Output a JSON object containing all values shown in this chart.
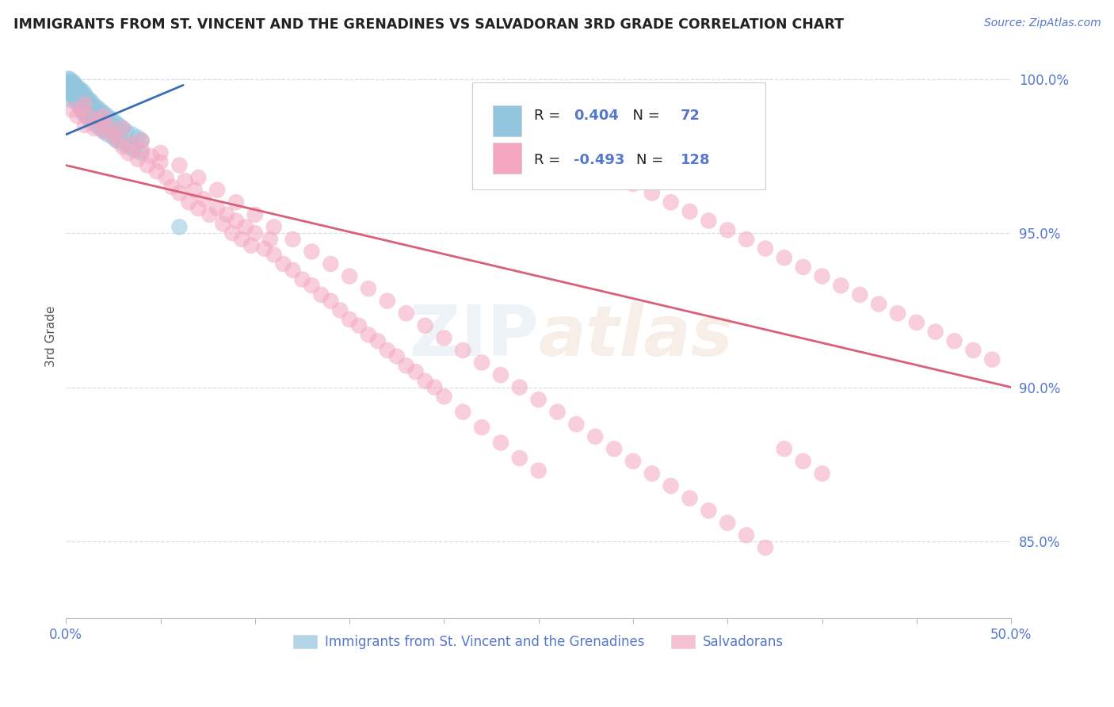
{
  "title": "IMMIGRANTS FROM ST. VINCENT AND THE GRENADINES VS SALVADORAN 3RD GRADE CORRELATION CHART",
  "source_text": "Source: ZipAtlas.com",
  "ylabel": "3rd Grade",
  "xlim": [
    0.0,
    0.5
  ],
  "ylim": [
    0.825,
    1.008
  ],
  "yticks": [
    0.85,
    0.9,
    0.95,
    1.0
  ],
  "ytick_labels": [
    "85.0%",
    "90.0%",
    "95.0%",
    "100.0%"
  ],
  "legend_blue_r": "0.404",
  "legend_blue_n": "72",
  "legend_pink_r": "-0.493",
  "legend_pink_n": "128",
  "blue_color": "#92c5de",
  "pink_color": "#f4a6c0",
  "blue_line_color": "#3a6eb5",
  "pink_line_color": "#d9607a",
  "axis_color": "#5577cc",
  "background_color": "#ffffff",
  "blue_scatter_x": [
    0.001,
    0.001,
    0.001,
    0.002,
    0.002,
    0.002,
    0.003,
    0.003,
    0.003,
    0.004,
    0.004,
    0.005,
    0.005,
    0.006,
    0.006,
    0.007,
    0.007,
    0.008,
    0.008,
    0.009,
    0.01,
    0.01,
    0.011,
    0.012,
    0.013,
    0.014,
    0.015,
    0.016,
    0.018,
    0.019,
    0.02,
    0.022,
    0.024,
    0.026,
    0.028,
    0.03,
    0.032,
    0.035,
    0.038,
    0.04,
    0.001,
    0.002,
    0.002,
    0.003,
    0.003,
    0.004,
    0.004,
    0.005,
    0.005,
    0.006,
    0.007,
    0.007,
    0.008,
    0.009,
    0.009,
    0.01,
    0.011,
    0.012,
    0.013,
    0.015,
    0.016,
    0.018,
    0.02,
    0.022,
    0.025,
    0.027,
    0.03,
    0.033,
    0.036,
    0.04,
    0.003,
    0.06
  ],
  "blue_scatter_y": [
    1.0,
    0.999,
    0.998,
    1.0,
    0.999,
    0.998,
    0.999,
    0.998,
    0.997,
    0.999,
    0.997,
    0.998,
    0.996,
    0.997,
    0.996,
    0.997,
    0.995,
    0.996,
    0.994,
    0.996,
    0.995,
    0.993,
    0.994,
    0.993,
    0.993,
    0.992,
    0.991,
    0.991,
    0.99,
    0.989,
    0.989,
    0.988,
    0.987,
    0.986,
    0.985,
    0.984,
    0.983,
    0.982,
    0.981,
    0.98,
    0.997,
    0.997,
    0.996,
    0.996,
    0.995,
    0.995,
    0.994,
    0.994,
    0.993,
    0.993,
    0.992,
    0.991,
    0.991,
    0.99,
    0.989,
    0.989,
    0.988,
    0.987,
    0.987,
    0.986,
    0.985,
    0.984,
    0.983,
    0.982,
    0.981,
    0.98,
    0.979,
    0.978,
    0.977,
    0.976,
    0.993,
    0.952
  ],
  "pink_scatter_x": [
    0.003,
    0.006,
    0.008,
    0.01,
    0.012,
    0.015,
    0.017,
    0.02,
    0.022,
    0.025,
    0.027,
    0.03,
    0.033,
    0.035,
    0.038,
    0.04,
    0.043,
    0.045,
    0.048,
    0.05,
    0.053,
    0.056,
    0.06,
    0.063,
    0.065,
    0.068,
    0.07,
    0.073,
    0.076,
    0.08,
    0.083,
    0.085,
    0.088,
    0.09,
    0.093,
    0.095,
    0.098,
    0.1,
    0.105,
    0.108,
    0.11,
    0.115,
    0.12,
    0.125,
    0.13,
    0.135,
    0.14,
    0.145,
    0.15,
    0.155,
    0.16,
    0.165,
    0.17,
    0.175,
    0.18,
    0.185,
    0.19,
    0.195,
    0.2,
    0.21,
    0.22,
    0.23,
    0.24,
    0.25,
    0.26,
    0.27,
    0.28,
    0.29,
    0.3,
    0.31,
    0.32,
    0.33,
    0.34,
    0.35,
    0.36,
    0.37,
    0.38,
    0.39,
    0.4,
    0.41,
    0.42,
    0.43,
    0.44,
    0.45,
    0.46,
    0.47,
    0.48,
    0.49,
    0.01,
    0.02,
    0.03,
    0.04,
    0.05,
    0.06,
    0.07,
    0.08,
    0.09,
    0.1,
    0.11,
    0.12,
    0.13,
    0.14,
    0.15,
    0.16,
    0.17,
    0.18,
    0.19,
    0.2,
    0.21,
    0.22,
    0.23,
    0.24,
    0.25,
    0.26,
    0.27,
    0.28,
    0.29,
    0.3,
    0.31,
    0.32,
    0.33,
    0.34,
    0.35,
    0.36,
    0.37,
    0.38,
    0.39,
    0.4
  ],
  "pink_scatter_y": [
    0.99,
    0.988,
    0.99,
    0.985,
    0.988,
    0.984,
    0.987,
    0.983,
    0.985,
    0.982,
    0.98,
    0.978,
    0.976,
    0.979,
    0.974,
    0.977,
    0.972,
    0.975,
    0.97,
    0.973,
    0.968,
    0.965,
    0.963,
    0.967,
    0.96,
    0.964,
    0.958,
    0.961,
    0.956,
    0.958,
    0.953,
    0.956,
    0.95,
    0.954,
    0.948,
    0.952,
    0.946,
    0.95,
    0.945,
    0.948,
    0.943,
    0.94,
    0.938,
    0.935,
    0.933,
    0.93,
    0.928,
    0.925,
    0.922,
    0.92,
    0.917,
    0.915,
    0.912,
    0.91,
    0.907,
    0.905,
    0.902,
    0.9,
    0.897,
    0.892,
    0.887,
    0.882,
    0.877,
    0.873,
    0.978,
    0.975,
    0.972,
    0.969,
    0.966,
    0.963,
    0.96,
    0.957,
    0.954,
    0.951,
    0.948,
    0.945,
    0.942,
    0.939,
    0.936,
    0.933,
    0.93,
    0.927,
    0.924,
    0.921,
    0.918,
    0.915,
    0.912,
    0.909,
    0.992,
    0.988,
    0.984,
    0.98,
    0.976,
    0.972,
    0.968,
    0.964,
    0.96,
    0.956,
    0.952,
    0.948,
    0.944,
    0.94,
    0.936,
    0.932,
    0.928,
    0.924,
    0.92,
    0.916,
    0.912,
    0.908,
    0.904,
    0.9,
    0.896,
    0.892,
    0.888,
    0.884,
    0.88,
    0.876,
    0.872,
    0.868,
    0.864,
    0.86,
    0.856,
    0.852,
    0.848,
    0.88,
    0.876,
    0.872
  ],
  "blue_line_x": [
    0.0,
    0.062
  ],
  "blue_line_y": [
    0.982,
    0.998
  ],
  "pink_line_x": [
    0.0,
    0.5
  ],
  "pink_line_y": [
    0.972,
    0.9
  ],
  "legend_label_blue": "Immigrants from St. Vincent and the Grenadines",
  "legend_label_pink": "Salvadorans"
}
